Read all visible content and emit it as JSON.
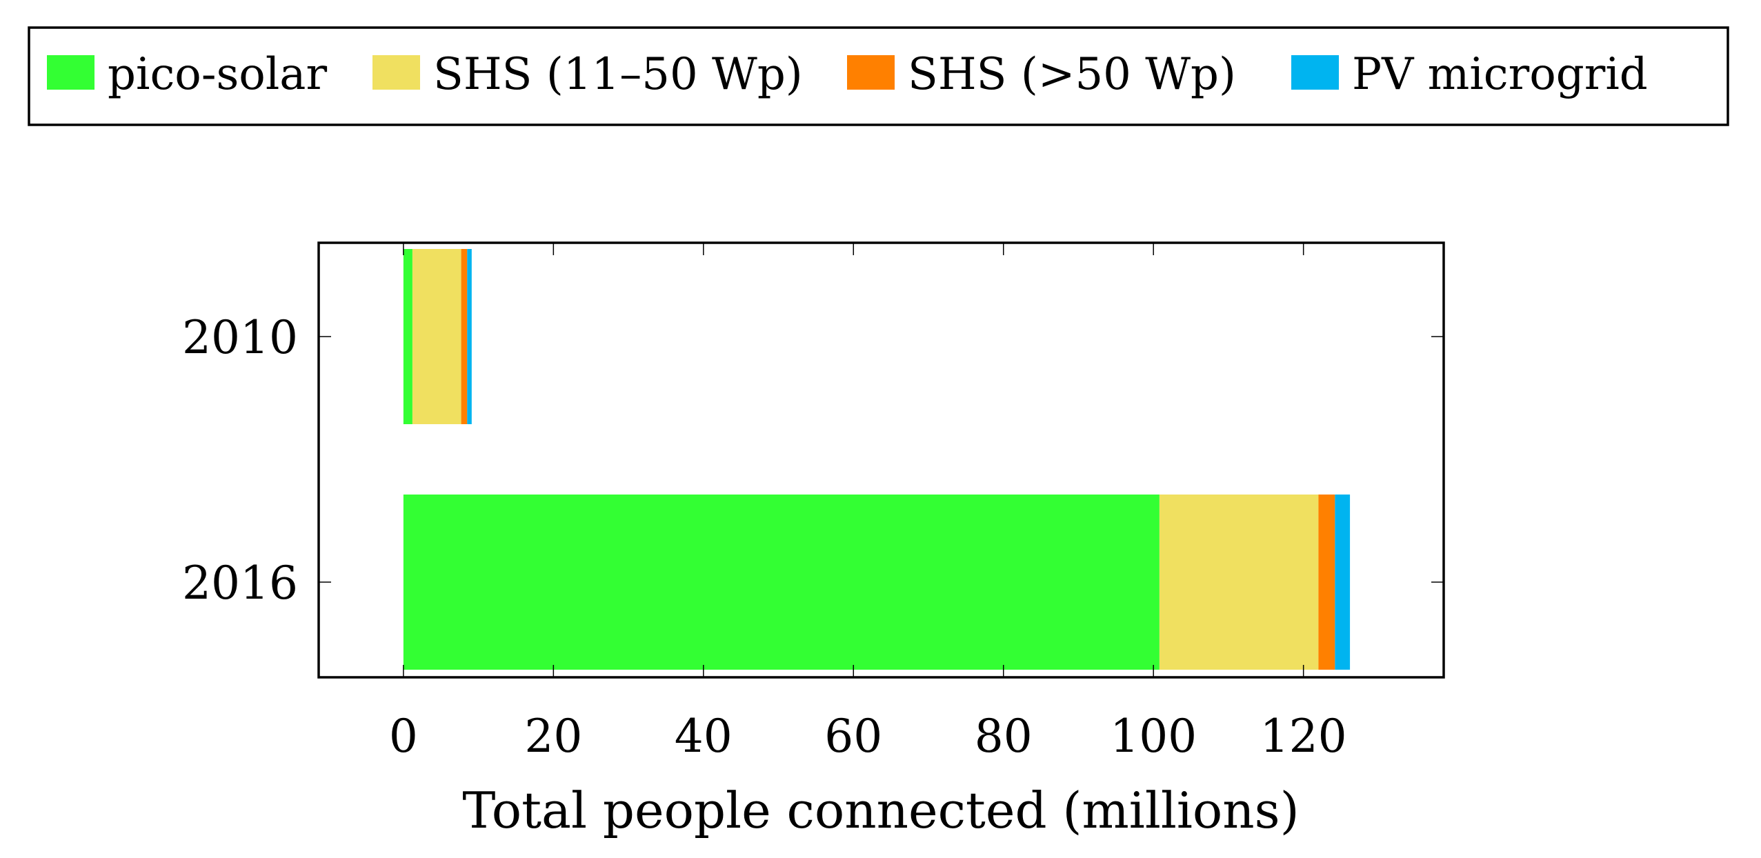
{
  "chart_data": {
    "type": "bar",
    "orientation": "horizontal",
    "stacked": true,
    "categories": [
      "2010",
      "2016"
    ],
    "series": [
      {
        "name": "pico-solar",
        "color": "#33ff33",
        "values": [
          1.2,
          100.8
        ]
      },
      {
        "name": "SHS (11–50 Wp)",
        "color": "#f0e060",
        "values": [
          6.5,
          21.2
        ]
      },
      {
        "name": "SHS (>50 Wp)",
        "color": "#ff8000",
        "values": [
          0.8,
          2.2
        ]
      },
      {
        "name": "PV microgrid",
        "color": "#00b4f0",
        "values": [
          0.6,
          2.0
        ]
      }
    ],
    "xlabel": "Total people connected (millions)",
    "ylabel": "",
    "title": "",
    "xlim": [
      -11.3,
      138.7
    ],
    "xticks": [
      0,
      20,
      40,
      60,
      80,
      100,
      120
    ],
    "grid": false,
    "legend_position": "top"
  }
}
